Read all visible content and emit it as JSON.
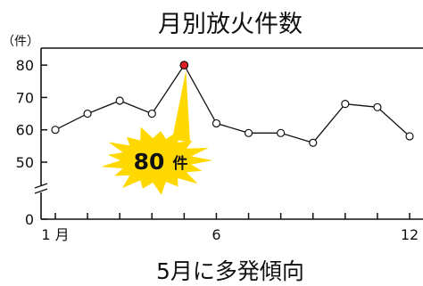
{
  "chart_data": {
    "type": "line",
    "title": "月別放火件数",
    "caption": "5月に多発傾向",
    "y_unit": "（件）",
    "x": [
      1,
      2,
      3,
      4,
      5,
      6,
      7,
      8,
      9,
      10,
      11,
      12
    ],
    "values": [
      60,
      65,
      69,
      65,
      80,
      62,
      59,
      59,
      56,
      68,
      67,
      58
    ],
    "x_tick_labels": [
      {
        "x": 1,
        "label": "1 月"
      },
      {
        "x": 6,
        "label": "6"
      },
      {
        "x": 12,
        "label": "12"
      }
    ],
    "y_ticks": [
      0,
      50,
      60,
      70,
      80
    ],
    "ylim": [
      0,
      85
    ],
    "xlim": [
      1,
      12
    ],
    "axis_break": true,
    "grid": false,
    "highlight": {
      "x": 5,
      "value_label": "80",
      "unit_label": "件",
      "point_color": "#e02020",
      "burst_color": "#ffd800"
    },
    "line_color": "#111111",
    "marker_fill": "#ffffff"
  }
}
